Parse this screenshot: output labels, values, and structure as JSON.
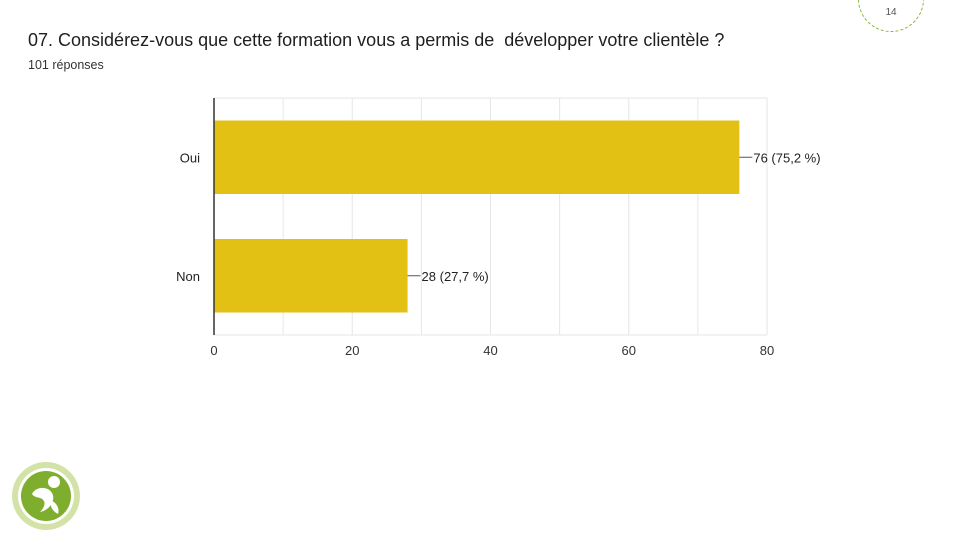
{
  "slide": {
    "title": "07. Considérez-vous que cette formation vous a permis de  développer votre clientèle ?",
    "subtitle": "101 réponses",
    "page_number": "14"
  },
  "colors": {
    "bar": "#e2c014",
    "grid": "#e6e6e6",
    "axis": "#333333",
    "badge": "#8ab43c",
    "logo_green": "#7fae2e",
    "logo_light": "#d3e3a8"
  },
  "logo": {
    "icon": "person-in-circle-logo"
  },
  "chart_data": {
    "type": "bar",
    "orientation": "horizontal",
    "categories": [
      "Oui",
      "Non"
    ],
    "values": [
      76,
      28
    ],
    "data_labels": [
      "76 (75,2 %)",
      "28 (27,7 %)"
    ],
    "xlim": [
      0,
      80
    ],
    "xticks": [
      "0",
      "20",
      "40",
      "60",
      "80"
    ],
    "grid": true,
    "legend": "none"
  }
}
